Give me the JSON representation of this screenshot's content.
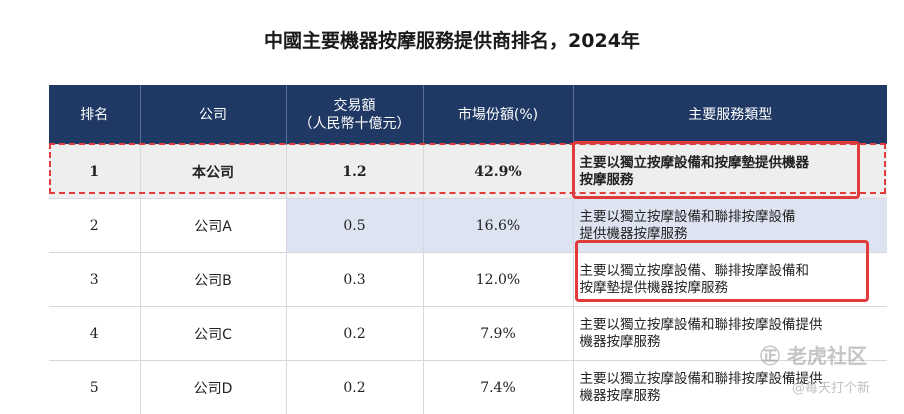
{
  "title": "中國主要機器按摩服務提供商排名，2024年",
  "table": {
    "headers": [
      "排名",
      "公司",
      "交易額\n（人民幣十億元）",
      "市場份額(%)",
      "主要服務類型"
    ],
    "rows": [
      {
        "rank": "1",
        "company": "本公司",
        "amount": "1.2",
        "share": "42.9%",
        "service_l1": "主要以獨立按摩設備和按摩墊提供機器",
        "service_l2": "按摩服務"
      },
      {
        "rank": "2",
        "company": "公司A",
        "amount": "0.5",
        "share": "16.6%",
        "service_l1": "主要以獨立按摩設備和聯排按摩設備",
        "service_l2": "提供機器按摩服務"
      },
      {
        "rank": "3",
        "company": "公司B",
        "amount": "0.3",
        "share": "12.0%",
        "service_l1": "主要以獨立按摩設備、聯排按摩設備和",
        "service_l2": "按摩墊提供機器按摩服務"
      },
      {
        "rank": "4",
        "company": "公司C",
        "amount": "0.2",
        "share": "7.9%",
        "service_l1": "主要以獨立按摩設備和聯排按摩設備提供",
        "service_l2": "機器按摩服務"
      },
      {
        "rank": "5",
        "company": "公司D",
        "amount": "0.2",
        "share": "7.4%",
        "service_l1": "主要以獨立按摩設備和聯排按摩設備提供",
        "service_l2": "機器按摩服務"
      }
    ]
  },
  "watermark": {
    "line1": "㊣ 老虎社区",
    "line2": "@每天打个新"
  },
  "colors": {
    "header_bg": "#1f3864",
    "highlight_red": "#e23b3b",
    "row1_bg": "#eeeeee",
    "shade_blue": "#dde3f1"
  }
}
